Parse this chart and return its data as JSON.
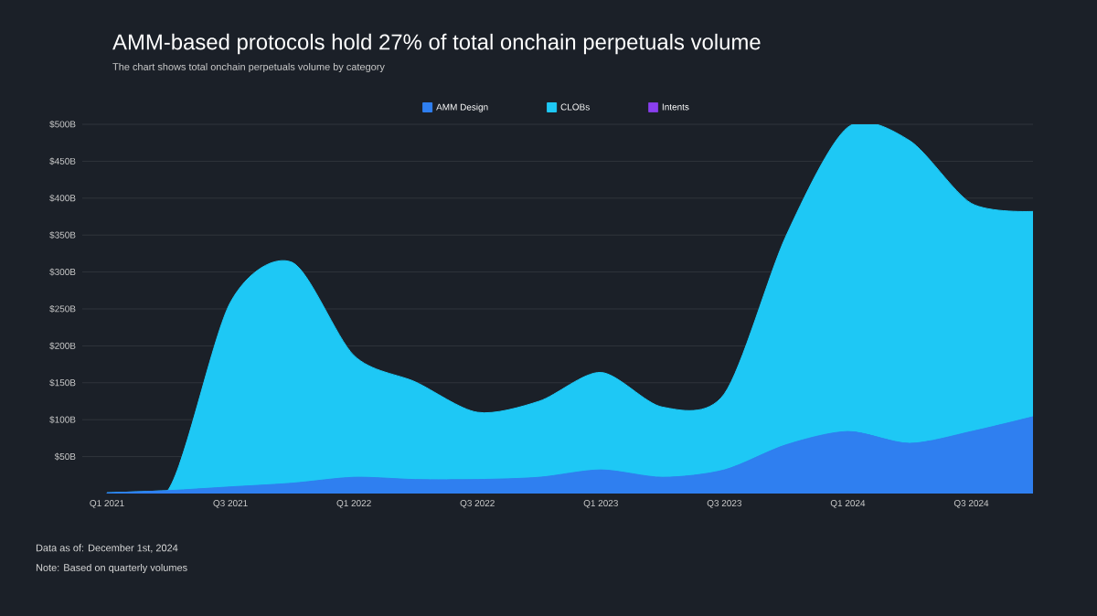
{
  "chart_data": {
    "type": "area",
    "stacked": true,
    "title": "AMM-based protocols hold 27% of total onchain perpetuals volume",
    "subtitle": "The chart shows total onchain perpetuals volume by category",
    "categories": [
      "Q1 2021",
      null,
      "Q3 2021",
      null,
      "Q1 2022",
      null,
      "Q3 2022",
      null,
      "Q1 2023",
      null,
      "Q3 2023",
      null,
      "Q1 2024",
      null,
      "Q3 2024",
      null
    ],
    "series": [
      {
        "name": "AMM Design",
        "color": "#2f7ff0",
        "values": [
          1,
          4,
          9,
          14,
          22,
          19,
          19,
          22,
          32,
          22,
          32,
          66,
          84,
          68,
          84,
          104
        ]
      },
      {
        "name": "CLOBs",
        "color": "#1ec8f5",
        "values": [
          0,
          2,
          250,
          299,
          165,
          132,
          91,
          103,
          132,
          95,
          103,
          283,
          412,
          410,
          309,
          278
        ]
      },
      {
        "name": "Intents",
        "color": "#8a3ff0",
        "values": [
          null,
          null,
          null,
          null,
          null,
          null,
          null,
          null,
          null,
          null,
          null,
          null,
          null,
          null,
          null,
          null
        ]
      }
    ],
    "ylim": [
      0,
      500
    ],
    "yticks": [
      {
        "value": 50,
        "label": "$50B"
      },
      {
        "value": 100,
        "label": "$100B"
      },
      {
        "value": 150,
        "label": "$150B"
      },
      {
        "value": 200,
        "label": "$200B"
      },
      {
        "value": 250,
        "label": "$250B"
      },
      {
        "value": 300,
        "label": "$300B"
      },
      {
        "value": 350,
        "label": "$350B"
      },
      {
        "value": 400,
        "label": "$400B"
      },
      {
        "value": 450,
        "label": "$450B"
      },
      {
        "value": 500,
        "label": "$500B"
      }
    ],
    "grid": "y",
    "legend": "top",
    "annotations": [
      "Data as of: December 1st, 2024",
      "Note: Based on quarterly volumes"
    ]
  }
}
